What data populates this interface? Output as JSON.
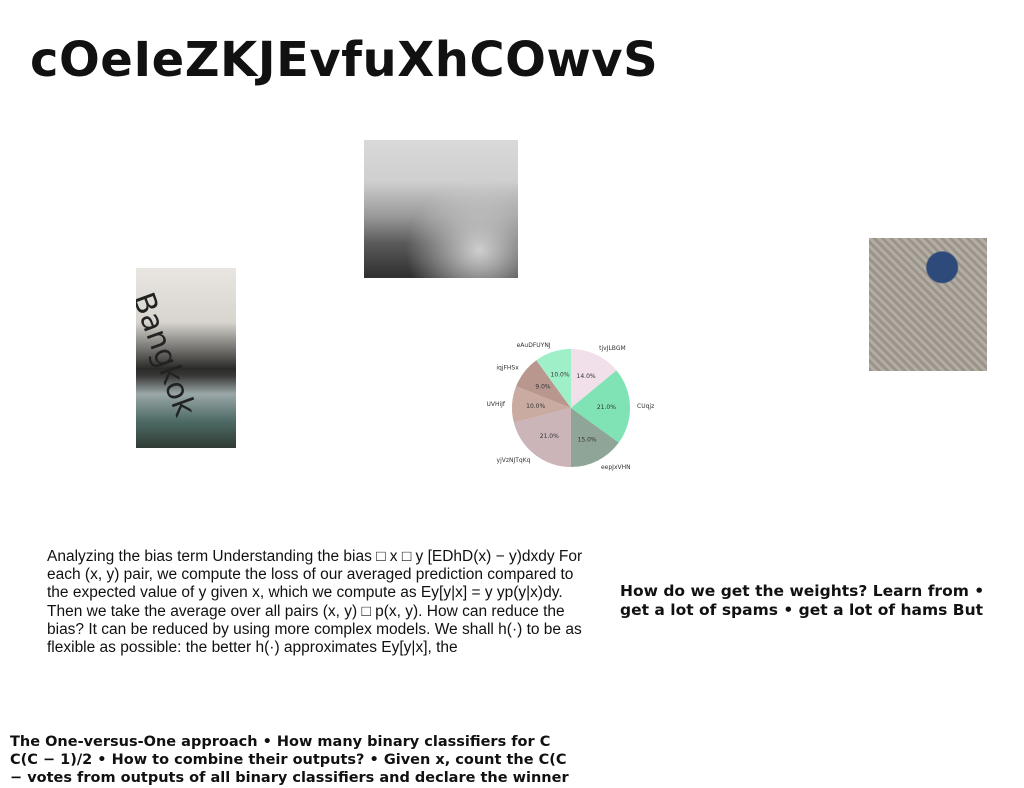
{
  "page": {
    "title": "cOeIeZKJEvfuXhCOwvS",
    "body_text": "Analyzing the bias term Understanding the bias □ x □ y [EDhD(x) − y)dxdy For each (x, y) pair, we compute the loss of our averaged prediction compared to the expected value of y given x, which we compute as Ey[y|x] = y yp(y|x)dy. Then we take the average over all pairs (x, y) □ p(x, y). How can reduce the bias? It can be reduced by using more complex models. We shall h(·) to be as flexible as possible: the better h(·) approximates Ey[y|x], the",
    "side_text": "How do we get the weights? Learn from • get a lot of spams • get a lot of hams But",
    "footer_text": "The One-versus-One approach • How many binary classifiers for C C(C − 1)/2 • How to combine their outputs? • Given x, count the C(C − votes from outputs of all binary classifiers and declare the winner"
  },
  "images": {
    "forest": "misty forest photo",
    "bangkok": "Bangkok station sign photo",
    "bangkok_sign": "Bangkok",
    "scarf": "knitted scarf photo"
  },
  "chart_data": {
    "type": "pie",
    "categories": [
      "tjvJLBGM",
      "CUqjz",
      "eepJxVHN",
      "yjVzNJTqKq",
      "UVHiJf",
      "iqjFHSx",
      "eAuDFUYNJ"
    ],
    "values": [
      14.0,
      21.0,
      15.0,
      21.0,
      10.0,
      9.0,
      10.0
    ],
    "value_labels": [
      "14.0%",
      "21.0%",
      "15.0%",
      "21.0%",
      "10.0%",
      "9.0%",
      "10.0%"
    ],
    "colors": [
      "#f1dfe9",
      "#7fe3b5",
      "#8fa597",
      "#cbb5b9",
      "#c9aba2",
      "#b9978f",
      "#9ff0c9"
    ],
    "start_angle_deg": 90,
    "direction": "clockwise"
  }
}
